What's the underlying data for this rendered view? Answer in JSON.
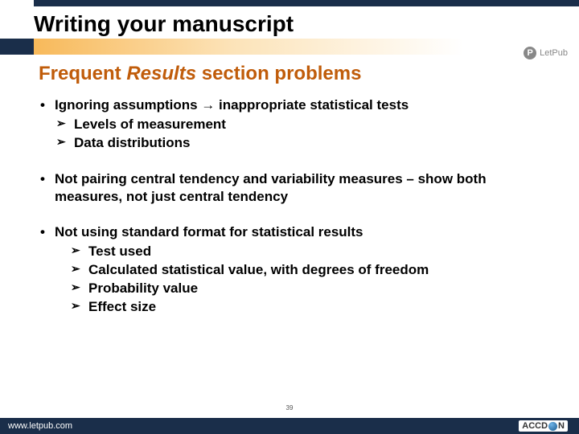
{
  "header": {
    "title": "Writing your manuscript",
    "logo_letter": "P",
    "logo_text": "LetPub"
  },
  "section": {
    "title_prefix": "Frequent ",
    "title_em": "Results",
    "title_suffix": " section problems"
  },
  "bullets": [
    {
      "text": "Ignoring assumptions → inappropriate statistical tests",
      "sub": [
        "Levels of measurement",
        "Data distributions"
      ]
    },
    {
      "text": "Not pairing central tendency and variability measures – show both measures, not just central tendency",
      "sub": []
    },
    {
      "text": "Not using standard format for statistical results",
      "sub": [
        "Test used",
        "Calculated statistical value, with degrees of freedom",
        "Probability value",
        "Effect size"
      ],
      "sub_indent": true
    }
  ],
  "page_number": "39",
  "footer": {
    "url": "www.letpub.com",
    "brand_pre": "ACCD",
    "brand_post": "N"
  },
  "colors": {
    "navy": "#1a2e4a",
    "orange_title": "#c05c0a",
    "gradient_start": "#f7b24a"
  }
}
